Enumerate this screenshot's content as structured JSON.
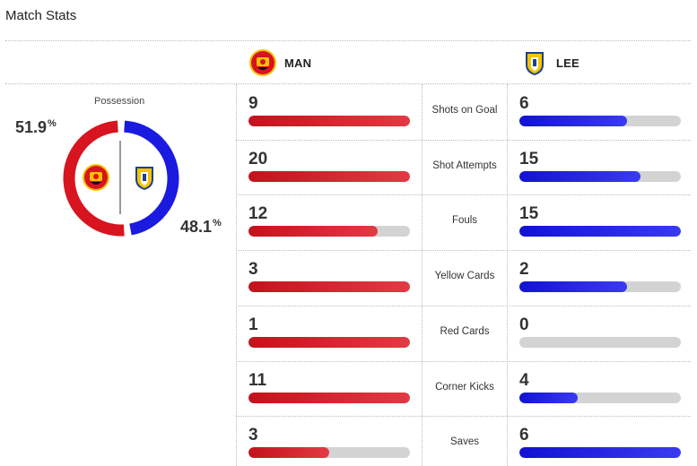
{
  "title": "Match Stats",
  "colors": {
    "home": "#d7141f",
    "away": "#1a1ae0",
    "track": "#d3d3d3"
  },
  "home": {
    "abbr": "MAN",
    "logo_icon": "man-utd-crest-icon"
  },
  "away": {
    "abbr": "LEE",
    "logo_icon": "leeds-crest-icon"
  },
  "possession": {
    "label": "Possession",
    "home_pct": 51.9,
    "away_pct": 48.1,
    "home_text": "51.9",
    "away_text": "48.1",
    "unit": "%"
  },
  "stats": [
    {
      "label": "Shots on Goal",
      "home": 9,
      "away": 6,
      "home_text": "9",
      "away_text": "6"
    },
    {
      "label": "Shot Attempts",
      "home": 20,
      "away": 15,
      "home_text": "20",
      "away_text": "15"
    },
    {
      "label": "Fouls",
      "home": 12,
      "away": 15,
      "home_text": "12",
      "away_text": "15"
    },
    {
      "label": "Yellow Cards",
      "home": 3,
      "away": 2,
      "home_text": "3",
      "away_text": "2"
    },
    {
      "label": "Red Cards",
      "home": 1,
      "away": 0,
      "home_text": "1",
      "away_text": "0"
    },
    {
      "label": "Corner Kicks",
      "home": 11,
      "away": 4,
      "home_text": "11",
      "away_text": "4"
    },
    {
      "label": "Saves",
      "home": 3,
      "away": 6,
      "home_text": "3",
      "away_text": "6"
    }
  ]
}
